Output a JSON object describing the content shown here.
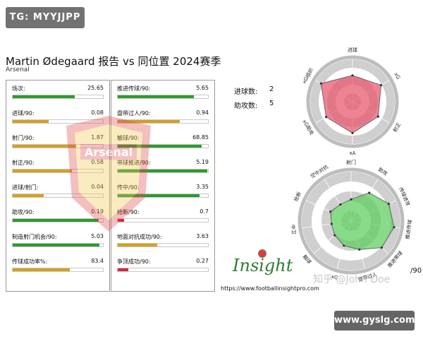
{
  "tag": "TG: MYYJJPP",
  "title": "Martin Ødegaard 报告 vs 同位置 2024赛季",
  "subtitle": "Arsenal",
  "watermark_text": "Arsenal",
  "bar_colors": {
    "green": "#2e9a2e",
    "gold": "#d4a020",
    "red": "#d8253a"
  },
  "left_metrics": [
    {
      "label": "场次:",
      "value": "25.65",
      "fill": 0.69,
      "color": "green"
    },
    {
      "label": "进球/90:",
      "value": "0.08",
      "fill": 0.4,
      "color": "gold"
    },
    {
      "label": "射门/90:",
      "value": "1.87",
      "fill": 0.7,
      "color": "gold"
    },
    {
      "label": "射正/90:",
      "value": "0.58",
      "fill": 0.66,
      "color": "gold"
    },
    {
      "label": "进球/射门:",
      "value": "0.04",
      "fill": 0.34,
      "color": "gold"
    },
    {
      "label": "助攻/90:",
      "value": "0.19",
      "fill": 0.95,
      "color": "green"
    },
    {
      "label": "制造射门机会/90:",
      "value": "5.03",
      "fill": 0.96,
      "color": "green"
    },
    {
      "label": "传球成功率%:",
      "value": "83.4",
      "fill": 0.63,
      "color": "gold"
    }
  ],
  "right_metrics": [
    {
      "label": "推进传球/90:",
      "value": "5.65",
      "fill": 0.84,
      "color": "green"
    },
    {
      "label": "盘带过人/90:",
      "value": "0.94",
      "fill": 0.69,
      "color": "gold"
    },
    {
      "label": "触球/90:",
      "value": "68.85",
      "fill": 0.93,
      "color": "green"
    },
    {
      "label": "带球推进/90:",
      "value": "5.19",
      "fill": 0.99,
      "color": "green"
    },
    {
      "label": "传中/90:",
      "value": "3.35",
      "fill": 0.91,
      "color": "green"
    },
    {
      "label": "抢断/90:",
      "value": "0.7",
      "fill": 0.07,
      "color": "red"
    },
    {
      "label": "地面对抗成功/90:",
      "value": "3.63",
      "fill": 0.44,
      "color": "gold"
    },
    {
      "label": "争顶成功/90:",
      "value": "0.27",
      "fill": 0.12,
      "color": "red"
    }
  ],
  "summary": {
    "goals_label": "进球数:",
    "goals_value": "2",
    "assists_label": "助攻数:",
    "assists_value": "5"
  },
  "chart_data": [
    {
      "type": "radar",
      "axes": [
        "进球",
        "xG",
        "射正",
        "xA",
        "xG助攻",
        "xG组织"
      ],
      "values": [
        0.62,
        0.78,
        0.7,
        0.74,
        0.72,
        0.86
      ],
      "range": [
        0,
        1
      ],
      "rings": 5,
      "fill_color": "#e8546a"
    },
    {
      "type": "radar",
      "axes": [
        "射门",
        "助攻",
        "传球进攻",
        "推进传球",
        "推进带球",
        "盘带过人",
        "xG",
        "触球",
        "中卫",
        "抢断",
        "空中对抗"
      ],
      "values": [
        0.44,
        0.68,
        0.84,
        0.88,
        0.82,
        0.6,
        0.52,
        0.44,
        0.4,
        0.46,
        0.4
      ],
      "range": [
        0,
        1
      ],
      "rings": 5,
      "fill_color": "#5ccc5c"
    }
  ],
  "brand": {
    "logo_text": "Insight",
    "url": "https://www.footballinsightpro.com"
  },
  "overlay_attribution": "知乎 @John Doe",
  "unit_suffix": "/90",
  "site_badge": "www.gyslg.com"
}
